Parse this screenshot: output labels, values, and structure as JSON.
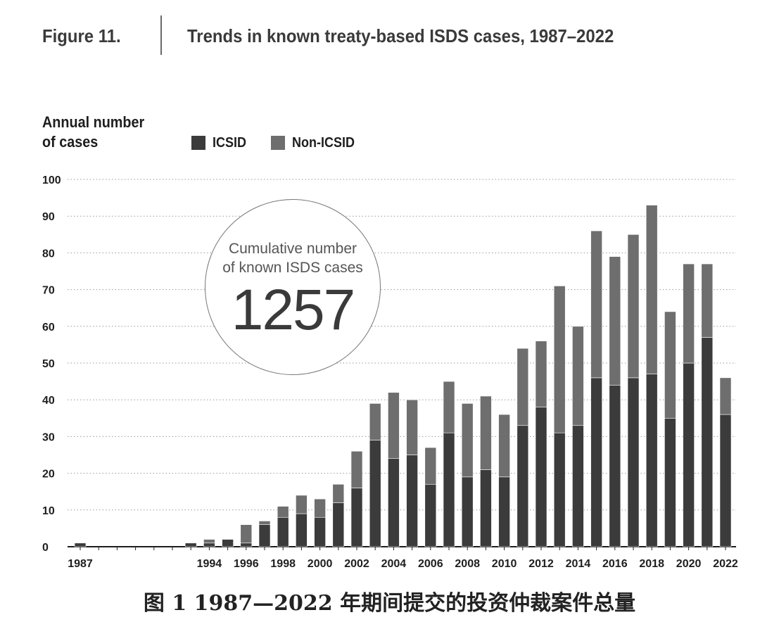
{
  "figure": {
    "label": "Figure 11.",
    "title": "Trends in known treaty-based ISDS cases, 1987–2022"
  },
  "caption": "图 1 1987—2022 年期间提交的投资仲裁案件总量",
  "annotation": {
    "label_line1": "Cumulative number",
    "label_line2": "of known ISDS cases",
    "value": "1257"
  },
  "chart_data": {
    "type": "bar",
    "stacked": true,
    "title": "Trends in known treaty-based ISDS cases, 1987–2022",
    "ylabel_line1": "Annual number",
    "ylabel_line2": "of cases",
    "xlabel": "",
    "ylim": [
      0,
      100
    ],
    "yticks": [
      0,
      10,
      20,
      30,
      40,
      50,
      60,
      70,
      80,
      90,
      100
    ],
    "grid": "horizontal dotted",
    "legend_position": "top-left",
    "categories": [
      "1987",
      "1988",
      "1989",
      "1990",
      "1991",
      "1992",
      "1993",
      "1994",
      "1995",
      "1996",
      "1997",
      "1998",
      "1999",
      "2000",
      "2001",
      "2002",
      "2003",
      "2004",
      "2005",
      "2006",
      "2007",
      "2008",
      "2009",
      "2010",
      "2011",
      "2012",
      "2013",
      "2014",
      "2015",
      "2016",
      "2017",
      "2018",
      "2019",
      "2020",
      "2021",
      "2022"
    ],
    "x_tick_labels": [
      "1987",
      "",
      "",
      "",
      "",
      "",
      "",
      "1994",
      "",
      "1996",
      "",
      "1998",
      "",
      "2000",
      "",
      "2002",
      "",
      "2004",
      "",
      "2006",
      "",
      "2008",
      "",
      "2010",
      "",
      "2012",
      "",
      "2014",
      "",
      "2016",
      "",
      "2018",
      "",
      "2020",
      "",
      "2022"
    ],
    "series": [
      {
        "name": "ICSID",
        "color": "#3b3b3b",
        "values": [
          1,
          0,
          0,
          0,
          0,
          0,
          1,
          1,
          2,
          1,
          6,
          8,
          9,
          8,
          12,
          16,
          29,
          24,
          25,
          17,
          31,
          19,
          21,
          19,
          33,
          38,
          31,
          33,
          46,
          44,
          46,
          47,
          35,
          50,
          57,
          36
        ]
      },
      {
        "name": "Non-ICSID",
        "color": "#6e6e6e",
        "values": [
          0,
          0,
          0,
          0,
          0,
          0,
          0,
          1,
          0,
          5,
          1,
          3,
          5,
          5,
          5,
          10,
          10,
          18,
          15,
          10,
          14,
          20,
          20,
          17,
          21,
          18,
          40,
          27,
          40,
          35,
          39,
          46,
          29,
          27,
          20,
          10
        ]
      }
    ]
  }
}
